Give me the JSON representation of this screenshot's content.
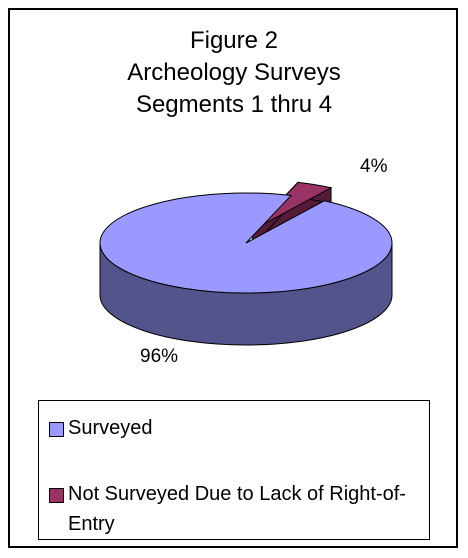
{
  "chart_data": {
    "type": "pie",
    "title": [
      "Figure 2",
      "Archeology Surveys",
      "Segments 1 thru 4"
    ],
    "categories": [
      "Surveyed",
      "Not Surveyed Due to Lack of Right-of-Entry"
    ],
    "values": [
      96,
      4
    ],
    "value_labels": [
      "96%",
      "4%"
    ],
    "colors": [
      "#9999ff",
      "#993366"
    ],
    "legend": "bottom"
  }
}
